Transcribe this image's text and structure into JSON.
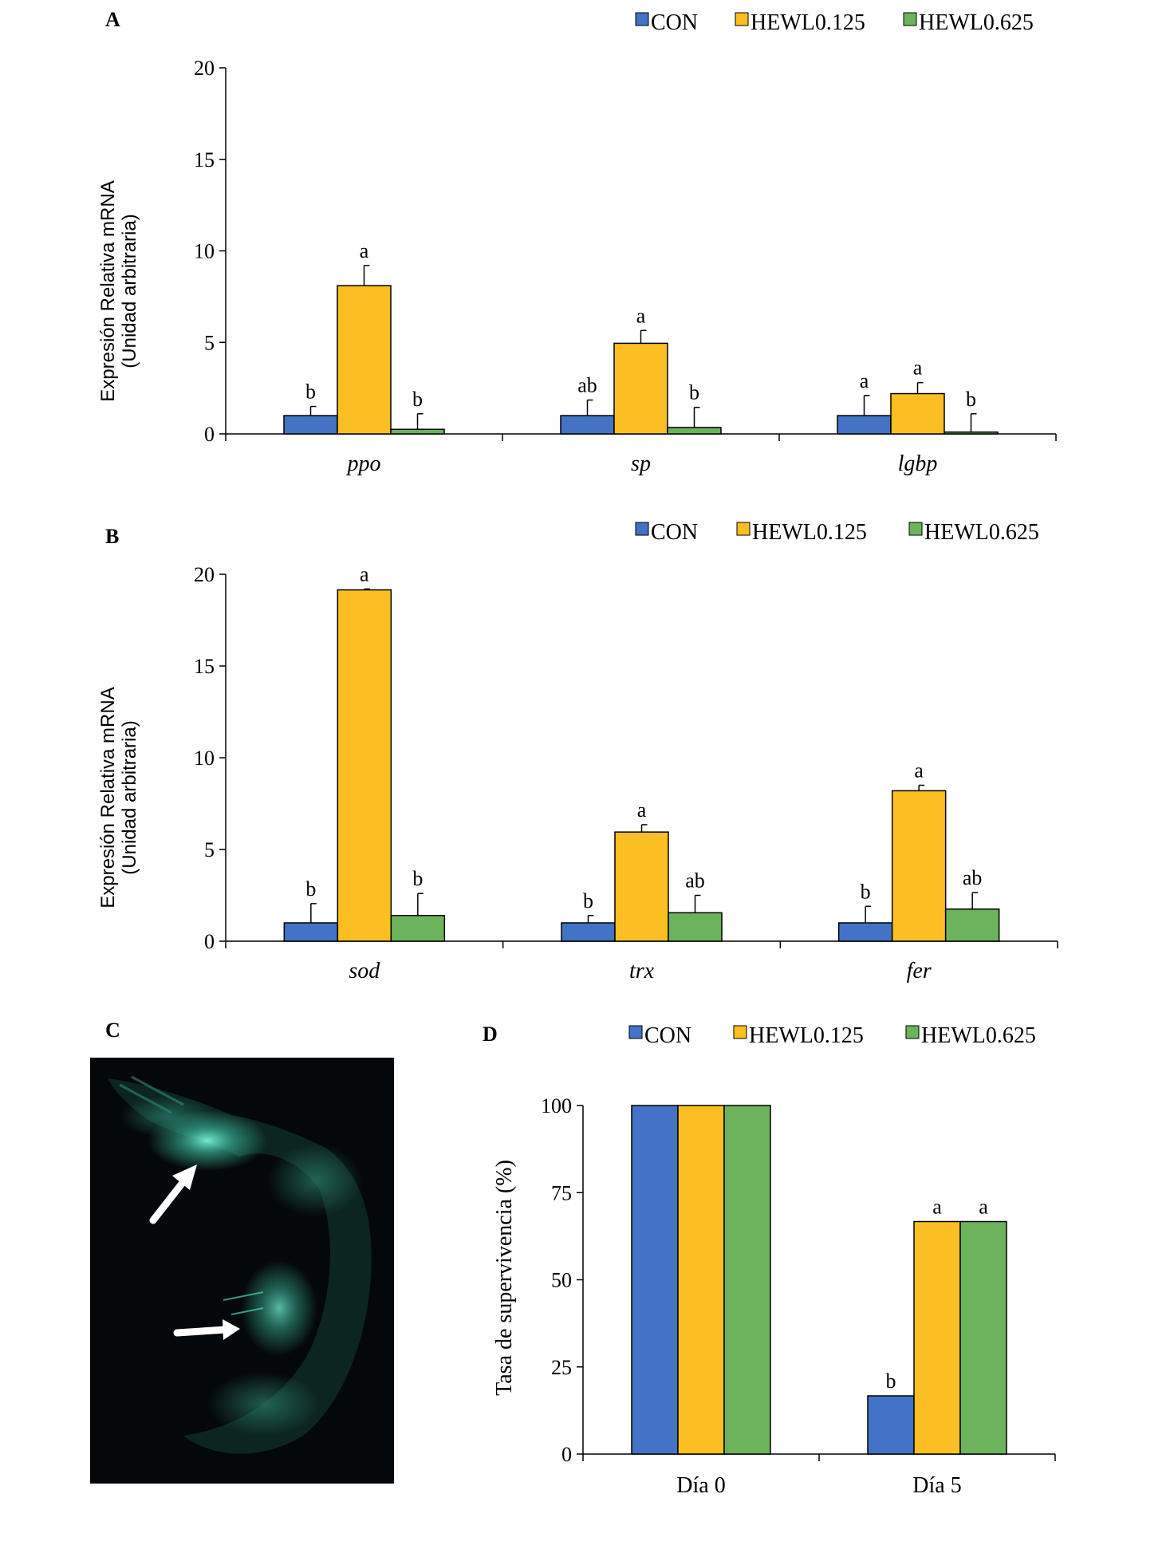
{
  "colors": {
    "CON": "#4472c4",
    "HEWL0.125": "#fbbf24",
    "HEWL0.625": "#6cb35b",
    "bar_stroke": "#000000",
    "photo_bg": "#05080a",
    "glow": "#3fc9a8"
  },
  "legend_labels": [
    "CON",
    "HEWL0.125",
    "HEWL0.625"
  ],
  "panels": {
    "A": {
      "letter": "A"
    },
    "B": {
      "letter": "B"
    },
    "C": {
      "letter": "C",
      "icon": "shrimp-fluorescence-photo",
      "arrows": 2
    },
    "D": {
      "letter": "D"
    }
  },
  "chart_data": [
    {
      "panel": "A",
      "type": "bar",
      "categories": [
        "ppo",
        "sp",
        "lgbp"
      ],
      "ylabel": [
        "Expresión Relativa mRNA",
        "(Unidad arbitraria)"
      ],
      "ylim": [
        0,
        20
      ],
      "yticks": [
        0,
        5,
        10,
        15,
        20
      ],
      "legend_placement": "top-right",
      "series": [
        {
          "name": "CON",
          "values": [
            1.0,
            1.0,
            1.0
          ],
          "errors": [
            0.5,
            0.85,
            1.1
          ],
          "letters": [
            "b",
            "ab",
            "a"
          ]
        },
        {
          "name": "HEWL0.125",
          "values": [
            8.1,
            4.95,
            2.2
          ],
          "errors": [
            1.1,
            0.7,
            0.6
          ],
          "letters": [
            "a",
            "a",
            "a"
          ]
        },
        {
          "name": "HEWL0.625",
          "values": [
            0.25,
            0.35,
            0.1
          ],
          "errors": [
            0.85,
            1.1,
            1.0
          ],
          "letters": [
            "b",
            "b",
            "b"
          ]
        }
      ]
    },
    {
      "panel": "B",
      "type": "bar",
      "categories": [
        "sod",
        "trx",
        "fer"
      ],
      "ylabel": [
        "Expresión Relativa mRNA",
        "(Unidad arbitraria)"
      ],
      "ylim": [
        0,
        20
      ],
      "yticks": [
        0,
        5,
        10,
        15,
        20
      ],
      "legend_placement": "top-right",
      "series": [
        {
          "name": "CON",
          "values": [
            1.0,
            1.0,
            1.0
          ],
          "errors": [
            1.05,
            0.4,
            0.9
          ],
          "letters": [
            "b",
            "b",
            "b"
          ]
        },
        {
          "name": "HEWL0.125",
          "values": [
            19.15,
            5.95,
            8.2
          ],
          "errors": [
            0.05,
            0.4,
            0.3
          ],
          "letters": [
            "a",
            "a",
            "a"
          ]
        },
        {
          "name": "HEWL0.625",
          "values": [
            1.4,
            1.55,
            1.75
          ],
          "errors": [
            1.2,
            0.95,
            0.9
          ],
          "letters": [
            "b",
            "ab",
            "ab"
          ]
        }
      ]
    },
    {
      "panel": "D",
      "type": "bar",
      "categories": [
        "Día 0",
        "Día 5"
      ],
      "ylabel": [
        "Tasa de supervivencia (%)"
      ],
      "ylim": [
        0,
        100
      ],
      "yticks": [
        0,
        25,
        50,
        75,
        100
      ],
      "legend_placement": "top-right",
      "series": [
        {
          "name": "CON",
          "values": [
            100,
            16.7
          ],
          "letters": [
            "",
            "b"
          ]
        },
        {
          "name": "HEWL0.125",
          "values": [
            100,
            66.7
          ],
          "letters": [
            "",
            "a"
          ]
        },
        {
          "name": "HEWL0.625",
          "values": [
            100,
            66.7
          ],
          "letters": [
            "",
            "a"
          ]
        }
      ]
    }
  ]
}
